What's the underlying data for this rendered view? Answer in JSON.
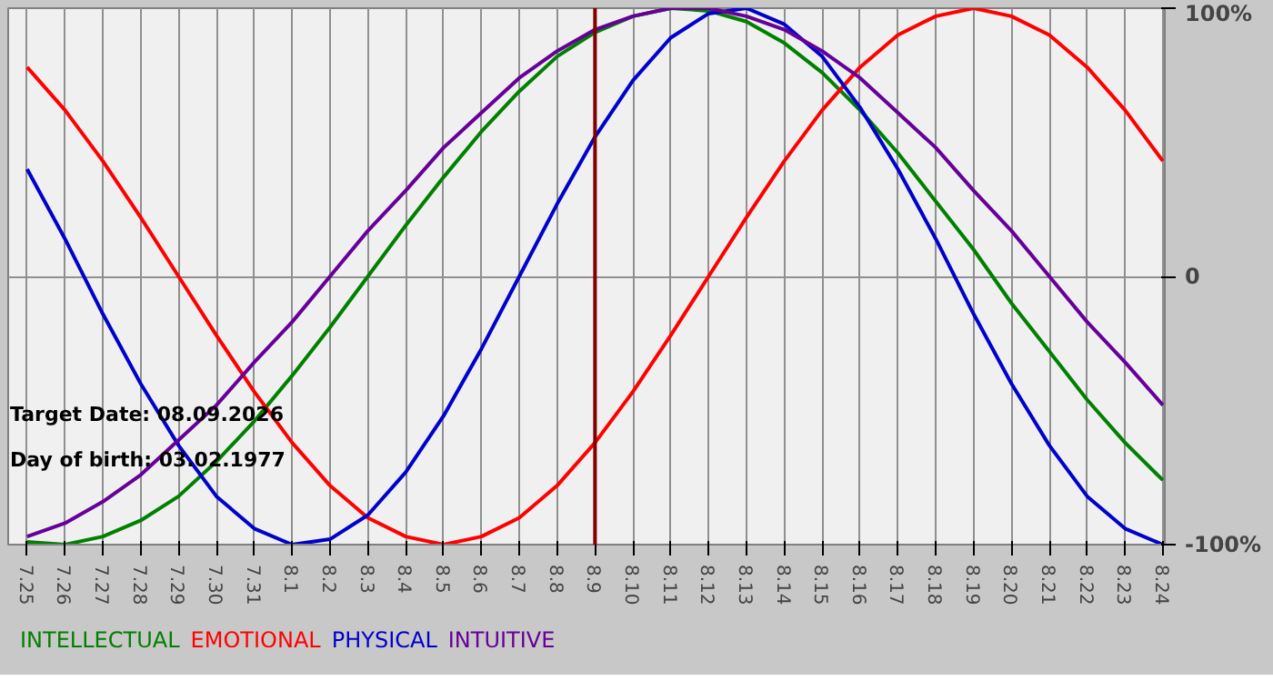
{
  "chart_data": {
    "type": "line",
    "categories": [
      "7.25",
      "7.26",
      "7.27",
      "7.28",
      "7.29",
      "7.30",
      "7.31",
      "8.1",
      "8.2",
      "8.3",
      "8.4",
      "8.5",
      "8.6",
      "8.7",
      "8.8",
      "8.9",
      "8.10",
      "8.11",
      "8.12",
      "8.13",
      "8.14",
      "8.15",
      "8.16",
      "8.17",
      "8.18",
      "8.19",
      "8.20",
      "8.21",
      "8.22",
      "8.23",
      "8.24"
    ],
    "series": [
      {
        "name": "INTELLECTUAL",
        "color": "#008000",
        "values": [
          -99,
          -100,
          -97,
          -91,
          -82,
          -69,
          -54,
          -37,
          -19,
          0,
          19,
          37,
          54,
          69,
          82,
          91,
          97,
          100,
          99,
          95,
          87,
          76,
          62,
          46,
          28,
          10,
          -10,
          -28,
          -46,
          -62,
          -76
        ]
      },
      {
        "name": "EMOTIONAL",
        "color": "#ff0000",
        "values": [
          78,
          62,
          43,
          22,
          0,
          -22,
          -43,
          -62,
          -78,
          -90,
          -97,
          -100,
          -97,
          -90,
          -78,
          -62,
          -43,
          -22,
          0,
          22,
          43,
          62,
          78,
          90,
          97,
          100,
          97,
          90,
          78,
          62,
          43
        ]
      },
      {
        "name": "PHYSICAL",
        "color": "#0000cc",
        "values": [
          40,
          14,
          -14,
          -40,
          -63,
          -82,
          -94,
          -100,
          -98,
          -89,
          -73,
          -52,
          -27,
          0,
          27,
          52,
          73,
          89,
          98,
          100,
          94,
          82,
          63,
          40,
          14,
          -14,
          -40,
          -63,
          -82,
          -94,
          -100
        ]
      },
      {
        "name": "INTUITIVE",
        "color": "#660099",
        "values": [
          -97,
          -92,
          -84,
          -74,
          -61,
          -48,
          -32,
          -17,
          0,
          17,
          32,
          48,
          61,
          74,
          84,
          92,
          97,
          100,
          100,
          97,
          92,
          84,
          74,
          61,
          48,
          32,
          17,
          0,
          -17,
          -32,
          -48
        ]
      }
    ],
    "ylim": [
      -100,
      100
    ],
    "yticks": [
      {
        "value": 100,
        "label": "100%"
      },
      0,
      {
        "value": -100,
        "label": "-100%"
      }
    ],
    "ref_lines": [
      {
        "axis": "x",
        "value": "8.9",
        "color": "#800000"
      }
    ],
    "annotations": [
      "Target Date: 08.09.2026",
      "Day of birth: 03.02.1977"
    ],
    "grid": true,
    "legend": "bottom",
    "marker": "none",
    "line_style": "solid"
  }
}
